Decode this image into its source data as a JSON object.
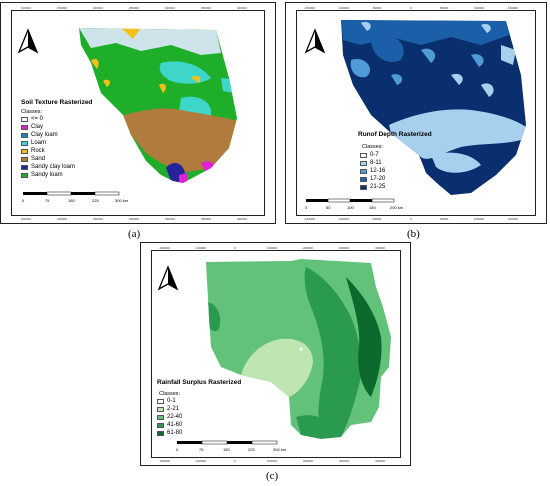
{
  "panels": [
    {
      "id": "a",
      "caption": "(a)",
      "legend_title": "Soil Texture Rasterized",
      "classes_label": "Classes:",
      "legend": [
        {
          "label": "<= 0",
          "color": "#ffffff"
        },
        {
          "label": "Clay",
          "color": "#e020d8"
        },
        {
          "label": "Clay loam",
          "color": "#2a7bc4"
        },
        {
          "label": "Loam",
          "color": "#3ed6c8"
        },
        {
          "label": "Rock",
          "color": "#f2c11a"
        },
        {
          "label": "Sand",
          "color": "#b07b3c"
        },
        {
          "label": "Sandy clay loam",
          "color": "#23239a"
        },
        {
          "label": "Sandy loam",
          "color": "#1fae2a"
        }
      ],
      "scale_ticks": [
        "0",
        "75",
        "150",
        "225",
        "300 km"
      ],
      "coord_ticks": [
        "100000",
        "150000",
        "200000",
        "250000",
        "300000",
        "350000",
        "400000"
      ]
    },
    {
      "id": "b",
      "caption": "(b)",
      "legend_title": "Runof Depth Rasterized",
      "classes_label": "Classes:",
      "legend": [
        {
          "label": "0-7",
          "color": "#f3f8fc"
        },
        {
          "label": "8-11",
          "color": "#a7cfee"
        },
        {
          "label": "12-16",
          "color": "#4e9bd6"
        },
        {
          "label": "17-20",
          "color": "#1a5fa8"
        },
        {
          "label": "21-25",
          "color": "#0a2f6e"
        }
      ],
      "scale_ticks": [
        "0",
        "50",
        "100",
        "150",
        "200 km"
      ],
      "coord_ticks": [
        "-150000",
        "-100000",
        "-50000",
        "0",
        "50000",
        "100000",
        "150000"
      ]
    },
    {
      "id": "c",
      "caption": "(c)",
      "legend_title": "Rainfall Surplus Rasterized",
      "classes_label": "Classes:",
      "legend": [
        {
          "label": "0-1",
          "color": "#f7fcf5"
        },
        {
          "label": "2-21",
          "color": "#bfe6b0"
        },
        {
          "label": "22-40",
          "color": "#62c27a"
        },
        {
          "label": "41-60",
          "color": "#2a9a4f"
        },
        {
          "label": "61-80",
          "color": "#0b6a2c"
        }
      ],
      "scale_ticks": [
        "0",
        "75",
        "150",
        "225",
        "300 km"
      ],
      "coord_ticks": [
        "-200000",
        "-100000",
        "0",
        "100000",
        "200000",
        "300000",
        "400000"
      ]
    }
  ]
}
